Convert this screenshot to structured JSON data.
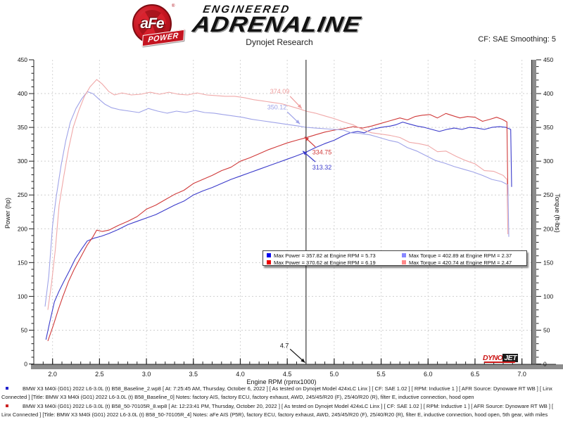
{
  "header": {
    "brand": {
      "circle_text": "aFe",
      "banner_text": "POWER",
      "reg_mark": "®",
      "line1": "ENGINEERED",
      "line2": "ADRENALINE"
    },
    "title": "Dynojet Research",
    "cf_label": "CF: SAE Smoothing: 5"
  },
  "chart_data": {
    "type": "line",
    "title": "Dynojet Research",
    "xlabel": "Engine RPM (rpmx1000)",
    "ylabel_left": "Power (hp)",
    "ylabel_right": "Torque (ft-lbs)",
    "xlim": [
      1.8,
      7.1
    ],
    "ylim": [
      0,
      450
    ],
    "x_ticks": [
      2.0,
      2.5,
      3.0,
      3.5,
      4.0,
      4.5,
      5.0,
      5.5,
      6.0,
      6.5,
      7.0
    ],
    "x_minor_step": 0.1,
    "y_ticks": [
      0,
      50,
      100,
      150,
      200,
      250,
      300,
      350,
      400,
      450
    ],
    "y_minor_step": 10,
    "grid": "dashed",
    "legend_position": "bottom-center-inside",
    "cursor": {
      "x": 4.7
    },
    "series": [
      {
        "name": "baseline-power",
        "unit": "hp",
        "axis": "left",
        "color": "#3b3bcb",
        "points": [
          [
            1.93,
            36
          ],
          [
            1.97,
            62
          ],
          [
            2.02,
            92
          ],
          [
            2.07,
            108
          ],
          [
            2.12,
            122
          ],
          [
            2.18,
            138
          ],
          [
            2.24,
            155
          ],
          [
            2.31,
            170
          ],
          [
            2.37,
            182
          ],
          [
            2.44,
            186
          ],
          [
            2.52,
            189
          ],
          [
            2.6,
            193
          ],
          [
            2.7,
            199
          ],
          [
            2.8,
            206
          ],
          [
            2.9,
            211
          ],
          [
            3.0,
            216
          ],
          [
            3.1,
            221
          ],
          [
            3.2,
            228
          ],
          [
            3.3,
            235
          ],
          [
            3.4,
            241
          ],
          [
            3.5,
            250
          ],
          [
            3.6,
            256
          ],
          [
            3.7,
            261
          ],
          [
            3.8,
            267
          ],
          [
            3.9,
            273
          ],
          [
            4.0,
            278
          ],
          [
            4.1,
            283
          ],
          [
            4.2,
            288
          ],
          [
            4.3,
            293
          ],
          [
            4.4,
            298
          ],
          [
            4.5,
            303
          ],
          [
            4.6,
            308
          ],
          [
            4.7,
            313.32
          ],
          [
            4.8,
            320
          ],
          [
            4.9,
            326
          ],
          [
            5.0,
            331
          ],
          [
            5.1,
            338
          ],
          [
            5.17,
            342
          ],
          [
            5.25,
            344
          ],
          [
            5.32,
            342
          ],
          [
            5.4,
            347
          ],
          [
            5.5,
            350
          ],
          [
            5.6,
            352
          ],
          [
            5.66,
            354
          ],
          [
            5.73,
            357.82
          ],
          [
            5.8,
            355
          ],
          [
            5.88,
            352
          ],
          [
            5.96,
            350
          ],
          [
            6.04,
            347
          ],
          [
            6.12,
            344
          ],
          [
            6.2,
            347
          ],
          [
            6.28,
            349
          ],
          [
            6.36,
            347
          ],
          [
            6.44,
            350
          ],
          [
            6.52,
            349
          ],
          [
            6.6,
            347
          ],
          [
            6.68,
            350
          ],
          [
            6.76,
            351
          ],
          [
            6.83,
            350
          ],
          [
            6.88,
            347
          ],
          [
            6.89,
            262
          ]
        ]
      },
      {
        "name": "afe-power",
        "unit": "hp",
        "axis": "left",
        "color": "#d03a3a",
        "points": [
          [
            1.95,
            34
          ],
          [
            2.01,
            58
          ],
          [
            2.06,
            80
          ],
          [
            2.11,
            100
          ],
          [
            2.17,
            122
          ],
          [
            2.23,
            140
          ],
          [
            2.3,
            158
          ],
          [
            2.37,
            176
          ],
          [
            2.43,
            188
          ],
          [
            2.47,
            198
          ],
          [
            2.53,
            196
          ],
          [
            2.6,
            198
          ],
          [
            2.7,
            205
          ],
          [
            2.8,
            211
          ],
          [
            2.9,
            218
          ],
          [
            3.0,
            229
          ],
          [
            3.1,
            235
          ],
          [
            3.2,
            243
          ],
          [
            3.3,
            251
          ],
          [
            3.4,
            257
          ],
          [
            3.5,
            267
          ],
          [
            3.6,
            273
          ],
          [
            3.7,
            279
          ],
          [
            3.8,
            286
          ],
          [
            3.9,
            291
          ],
          [
            4.0,
            300
          ],
          [
            4.1,
            305
          ],
          [
            4.2,
            311
          ],
          [
            4.3,
            317
          ],
          [
            4.4,
            322
          ],
          [
            4.5,
            327
          ],
          [
            4.6,
            331
          ],
          [
            4.7,
            334.75
          ],
          [
            4.8,
            339
          ],
          [
            4.9,
            343
          ],
          [
            5.0,
            346
          ],
          [
            5.1,
            348
          ],
          [
            5.2,
            351
          ],
          [
            5.3,
            349
          ],
          [
            5.4,
            352
          ],
          [
            5.5,
            356
          ],
          [
            5.6,
            360
          ],
          [
            5.7,
            364
          ],
          [
            5.78,
            361
          ],
          [
            5.86,
            366
          ],
          [
            5.94,
            368
          ],
          [
            6.02,
            369
          ],
          [
            6.1,
            364
          ],
          [
            6.19,
            370.62
          ],
          [
            6.27,
            367
          ],
          [
            6.34,
            364
          ],
          [
            6.42,
            366
          ],
          [
            6.5,
            365
          ],
          [
            6.58,
            359
          ],
          [
            6.66,
            362
          ],
          [
            6.73,
            365
          ],
          [
            6.79,
            362
          ],
          [
            6.84,
            358
          ],
          [
            6.85,
            249
          ]
        ]
      },
      {
        "name": "baseline-torque",
        "unit": "ft-lbs",
        "axis": "right",
        "color": "#9fa3e8",
        "points": [
          [
            1.92,
            85
          ],
          [
            1.96,
            130
          ],
          [
            2.0,
            205
          ],
          [
            2.04,
            248
          ],
          [
            2.09,
            293
          ],
          [
            2.14,
            330
          ],
          [
            2.19,
            358
          ],
          [
            2.25,
            378
          ],
          [
            2.31,
            392
          ],
          [
            2.37,
            402.89
          ],
          [
            2.43,
            400
          ],
          [
            2.5,
            391
          ],
          [
            2.56,
            384
          ],
          [
            2.63,
            379
          ],
          [
            2.72,
            376
          ],
          [
            2.82,
            374
          ],
          [
            2.92,
            372
          ],
          [
            3.02,
            378
          ],
          [
            3.12,
            374
          ],
          [
            3.22,
            371
          ],
          [
            3.32,
            374
          ],
          [
            3.42,
            372
          ],
          [
            3.52,
            375
          ],
          [
            3.62,
            372
          ],
          [
            3.72,
            371
          ],
          [
            3.82,
            369
          ],
          [
            3.92,
            367
          ],
          [
            4.02,
            365
          ],
          [
            4.12,
            362
          ],
          [
            4.22,
            360
          ],
          [
            4.32,
            358
          ],
          [
            4.42,
            356
          ],
          [
            4.52,
            354
          ],
          [
            4.62,
            352
          ],
          [
            4.7,
            350.12
          ],
          [
            4.8,
            349
          ],
          [
            4.9,
            348
          ],
          [
            5.0,
            347
          ],
          [
            5.1,
            346
          ],
          [
            5.18,
            342
          ],
          [
            5.28,
            341
          ],
          [
            5.38,
            339
          ],
          [
            5.48,
            335
          ],
          [
            5.58,
            331
          ],
          [
            5.68,
            328
          ],
          [
            5.78,
            320
          ],
          [
            5.88,
            315
          ],
          [
            5.98,
            308
          ],
          [
            6.08,
            301
          ],
          [
            6.18,
            297
          ],
          [
            6.28,
            292
          ],
          [
            6.38,
            288
          ],
          [
            6.48,
            284
          ],
          [
            6.58,
            279
          ],
          [
            6.68,
            273
          ],
          [
            6.78,
            270
          ],
          [
            6.85,
            265
          ],
          [
            6.86,
            188
          ]
        ]
      },
      {
        "name": "afe-torque",
        "unit": "ft-lbs",
        "axis": "right",
        "color": "#f0a8a8",
        "points": [
          [
            1.95,
            80
          ],
          [
            1.99,
            120
          ],
          [
            2.03,
            170
          ],
          [
            2.07,
            235
          ],
          [
            2.12,
            278
          ],
          [
            2.17,
            318
          ],
          [
            2.22,
            350
          ],
          [
            2.28,
            375
          ],
          [
            2.34,
            396
          ],
          [
            2.4,
            410
          ],
          [
            2.47,
            420.74
          ],
          [
            2.53,
            414
          ],
          [
            2.6,
            403
          ],
          [
            2.66,
            398
          ],
          [
            2.74,
            401
          ],
          [
            2.84,
            398
          ],
          [
            2.94,
            399
          ],
          [
            3.04,
            402
          ],
          [
            3.14,
            399
          ],
          [
            3.24,
            402
          ],
          [
            3.34,
            399
          ],
          [
            3.44,
            398
          ],
          [
            3.54,
            401
          ],
          [
            3.64,
            398
          ],
          [
            3.74,
            397
          ],
          [
            3.84,
            396
          ],
          [
            3.94,
            396
          ],
          [
            4.04,
            394
          ],
          [
            4.14,
            391
          ],
          [
            4.24,
            389
          ],
          [
            4.34,
            387
          ],
          [
            4.44,
            385
          ],
          [
            4.54,
            381
          ],
          [
            4.64,
            377
          ],
          [
            4.7,
            374.09
          ],
          [
            4.8,
            371
          ],
          [
            4.9,
            367
          ],
          [
            5.0,
            363
          ],
          [
            5.1,
            358
          ],
          [
            5.2,
            354
          ],
          [
            5.3,
            347
          ],
          [
            5.4,
            342
          ],
          [
            5.5,
            340
          ],
          [
            5.6,
            338
          ],
          [
            5.7,
            335
          ],
          [
            5.8,
            328
          ],
          [
            5.9,
            326
          ],
          [
            6.0,
            323
          ],
          [
            6.1,
            314
          ],
          [
            6.19,
            315
          ],
          [
            6.3,
            307
          ],
          [
            6.4,
            301
          ],
          [
            6.5,
            296
          ],
          [
            6.6,
            286
          ],
          [
            6.7,
            285
          ],
          [
            6.8,
            279
          ],
          [
            6.84,
            273
          ],
          [
            6.85,
            192
          ]
        ]
      }
    ],
    "annotations": [
      {
        "text": "374.09",
        "color": "#ee9c9c",
        "label_rpm": 4.42,
        "label_val": 403,
        "from_rpm": 4.53,
        "from_val": 396,
        "tip_rpm": 4.655,
        "tip_val": 378
      },
      {
        "text": "350.12",
        "color": "#9fa3e8",
        "label_rpm": 4.39,
        "label_val": 380,
        "from_rpm": 4.5,
        "from_val": 373,
        "tip_rpm": 4.635,
        "tip_val": 355
      },
      {
        "text": "334.75",
        "color": "#d03a3a",
        "label_rpm": 4.87,
        "label_val": 313,
        "from_rpm": 4.8,
        "from_val": 321,
        "tip_rpm": 4.685,
        "tip_val": 336
      },
      {
        "text": "313.32",
        "color": "#3b3bcb",
        "label_rpm": 4.87,
        "label_val": 291,
        "from_rpm": 4.8,
        "from_val": 299,
        "tip_rpm": 4.665,
        "tip_val": 315
      },
      {
        "text": "4.7",
        "color": "#111111",
        "label_rpm": 4.47,
        "label_val": 27,
        "from_rpm": 4.53,
        "from_val": 22,
        "tip_rpm": 4.69,
        "tip_val": 2
      }
    ],
    "legend": {
      "entries": [
        {
          "swatch": "#0000ee",
          "label": "Max Power = 357.82 at Engine RPM = 5.73"
        },
        {
          "swatch": "#8888ff",
          "label": "Max Torque = 402.89 at Engine RPM = 2.37"
        },
        {
          "swatch": "#ee0000",
          "label": "Max Power = 370.62 at Engine RPM = 6.19"
        },
        {
          "swatch": "#ff8888",
          "label": "Max Torque = 420.74 at Engine RPM = 2.47"
        }
      ]
    },
    "watermark": {
      "part1": "DYNO",
      "part2": "JET"
    }
  },
  "footer": {
    "entries": [
      {
        "bullet_color": "#2222cc",
        "text": "BMW X3 M40i (G01) 2022 L6-3.0L (t) B58_Baseline_2.wp8 [ At: 7:25:45 AM, Thursday, October 6, 2022 ] [ As tested on Dynojet Model 424xLC Linx ] [ CF: SAE 1.02 ] [ RPM: Inductive 1 ] [ AFR Source: Dynoware RT WB ] [ Linx Connected ] [Title: BMW X3 M40i (G01) 2022 L6-3.0L (t) B58_Baseline_0]  Notes: factory AIS, factory ECU, factory exhaust, AWD, 245/45/R20 (F), 25/40/R20 (R), filter E, inductive connection, hood open"
      },
      {
        "bullet_color": "#cc2222",
        "text": "BMW X3 M40i (G01) 2022 L6-3.0L (t) B58_50-70105R_8.wp8 [ At: 12:23:41 PM, Thursday, October 20, 2022 ] [ As tested on Dynojet Model 424xLC Linx ] [ CF: SAE 1.02 ] [ RPM: Inductive 1 ] [ AFR Source: Dynoware RT WB ] [ Linx Connected ] [Title: BMW X3 M40i (G01) 2022 L6-3.0L (t) B58_50-70105R_4]  Notes: aFe AIS (P5R), factory ECU, factory exhaust, AWD, 245/45/R20 (F), 25/40/R20 (R), filter E, inductive connection, hood open, 5th gear, with miles"
      }
    ]
  }
}
